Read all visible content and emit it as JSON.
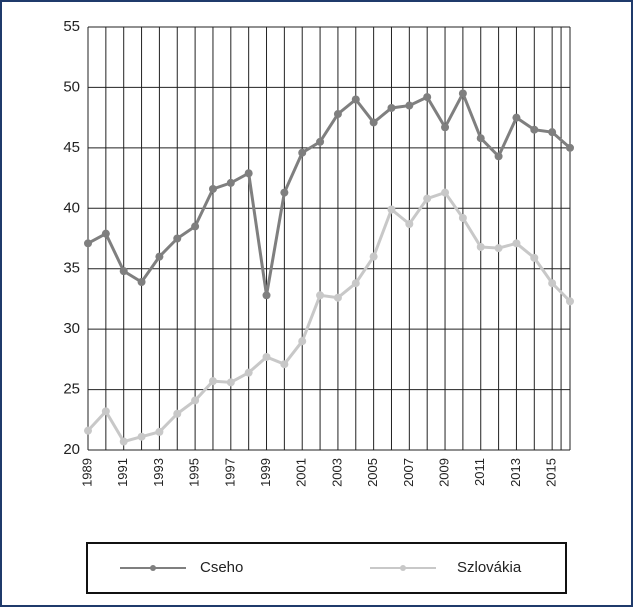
{
  "chart_data": {
    "type": "line",
    "x": [
      1989,
      1990,
      1991,
      1992,
      1993,
      1994,
      1995,
      1996,
      1997,
      1998,
      1999,
      2000,
      2001,
      2002,
      2003,
      2004,
      2005,
      2006,
      2007,
      2008,
      2009,
      2010,
      2011,
      2012,
      2013,
      2014,
      2015,
      2016
    ],
    "series": [
      {
        "name": "Cseho",
        "color": "#7f7f7f",
        "values": [
          37.1,
          37.9,
          34.8,
          33.9,
          36.0,
          37.5,
          38.5,
          41.6,
          42.1,
          42.9,
          32.8,
          41.3,
          44.6,
          45.5,
          47.8,
          49.0,
          47.1,
          48.3,
          48.5,
          49.2,
          46.7,
          49.5,
          45.8,
          44.3,
          47.5,
          46.5,
          46.3,
          45.0
        ]
      },
      {
        "name": "Szlovákia",
        "color": "#c8c8c8",
        "values": [
          21.6,
          23.2,
          20.7,
          21.1,
          21.5,
          23.0,
          24.1,
          25.7,
          25.6,
          26.4,
          27.7,
          27.1,
          29.0,
          32.8,
          32.6,
          33.8,
          36.0,
          39.9,
          38.7,
          40.8,
          41.3,
          39.2,
          36.8,
          36.7,
          37.1,
          35.9,
          33.8,
          32.3
        ]
      }
    ],
    "xlim": [
      1989,
      2016
    ],
    "xticks": [
      1989,
      1991,
      1993,
      1995,
      1997,
      1999,
      2001,
      2003,
      2005,
      2007,
      2009,
      2011,
      2013,
      2015
    ],
    "ylim": [
      20,
      55
    ],
    "yticks": [
      20,
      25,
      30,
      35,
      40,
      45,
      50,
      55
    ],
    "grid": true,
    "legend": "bottom"
  }
}
